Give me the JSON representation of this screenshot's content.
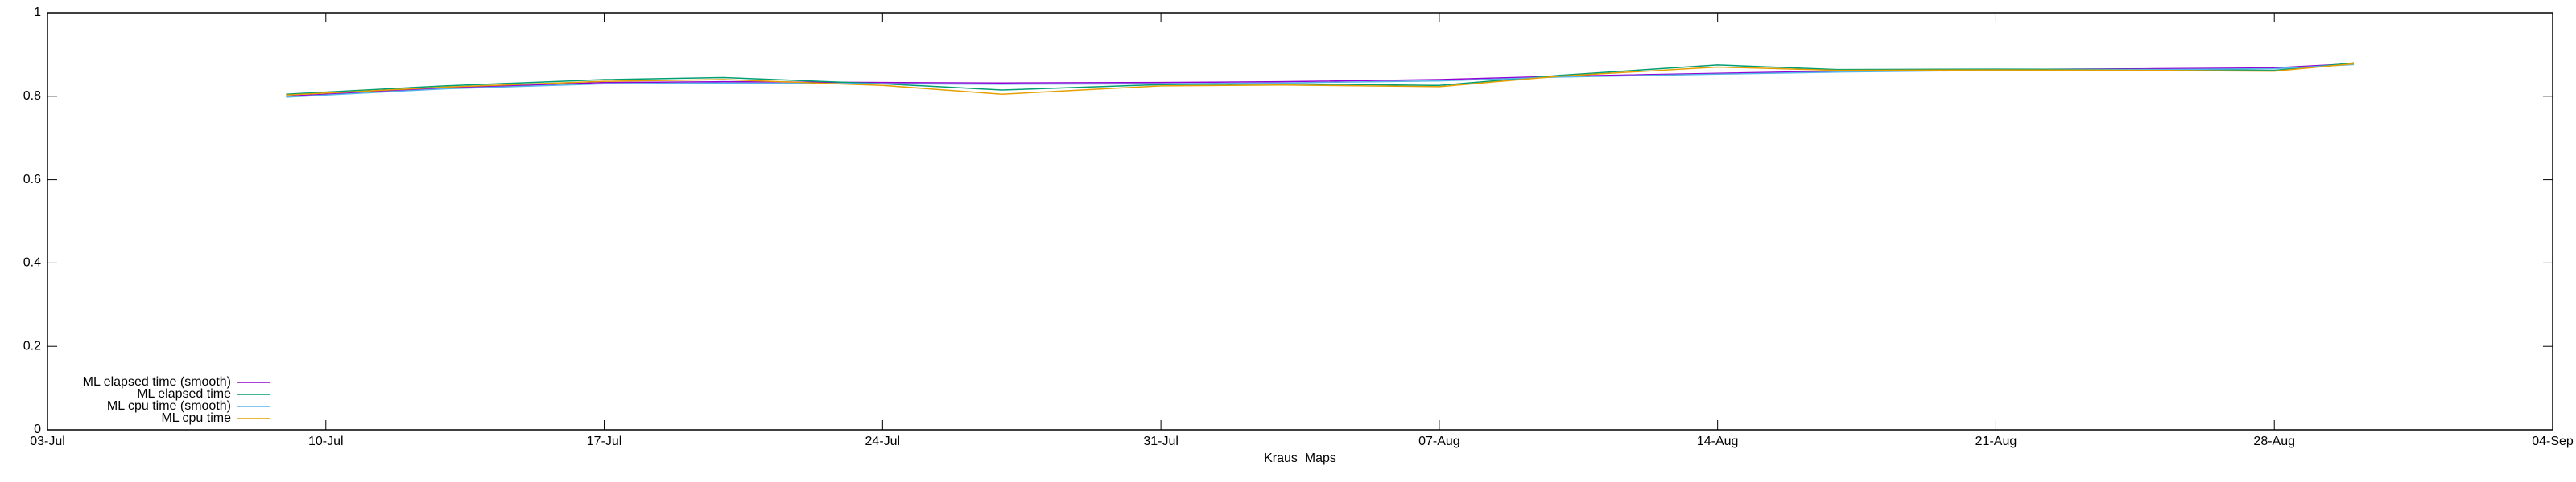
{
  "chart_data": {
    "type": "line",
    "xlabel": "Kraus_Maps",
    "x": [
      "09-Jul",
      "13-Jul",
      "17-Jul",
      "20-Jul",
      "24-Jul",
      "27-Jul",
      "31-Jul",
      "03-Aug",
      "07-Aug",
      "10-Aug",
      "14-Aug",
      "17-Aug",
      "21-Aug",
      "25-Aug",
      "28-Aug",
      "30-Aug"
    ],
    "series": [
      {
        "name": "ML elapsed time (smooth)",
        "color": "#9400d3",
        "values": [
          0.8,
          0.82,
          0.833,
          0.835,
          0.833,
          0.832,
          0.833,
          0.835,
          0.84,
          0.848,
          0.855,
          0.86,
          0.864,
          0.866,
          0.868,
          0.878
        ]
      },
      {
        "name": "ML elapsed time",
        "color": "#009e73",
        "values": [
          0.805,
          0.825,
          0.84,
          0.845,
          0.83,
          0.815,
          0.828,
          0.83,
          0.826,
          0.85,
          0.875,
          0.864,
          0.865,
          0.864,
          0.862,
          0.88
        ]
      },
      {
        "name": "ML cpu time (smooth)",
        "color": "#56b4e9",
        "values": [
          0.798,
          0.818,
          0.83,
          0.832,
          0.83,
          0.829,
          0.83,
          0.832,
          0.837,
          0.846,
          0.853,
          0.858,
          0.862,
          0.864,
          0.866,
          0.876
        ]
      },
      {
        "name": "ML cpu time",
        "color": "#e69f00",
        "values": [
          0.803,
          0.822,
          0.836,
          0.84,
          0.826,
          0.805,
          0.825,
          0.827,
          0.823,
          0.848,
          0.87,
          0.862,
          0.863,
          0.862,
          0.86,
          0.878
        ]
      }
    ],
    "xlim": [
      "03-Jul",
      "04-Sep"
    ],
    "xticks": [
      "03-Jul",
      "10-Jul",
      "17-Jul",
      "24-Jul",
      "31-Jul",
      "07-Aug",
      "14-Aug",
      "21-Aug",
      "28-Aug",
      "04-Sep"
    ],
    "ylim": [
      0,
      1
    ],
    "yticks": [
      0,
      0.2,
      0.4,
      0.6,
      0.8,
      1
    ],
    "legend": "lower left",
    "grid": false
  }
}
